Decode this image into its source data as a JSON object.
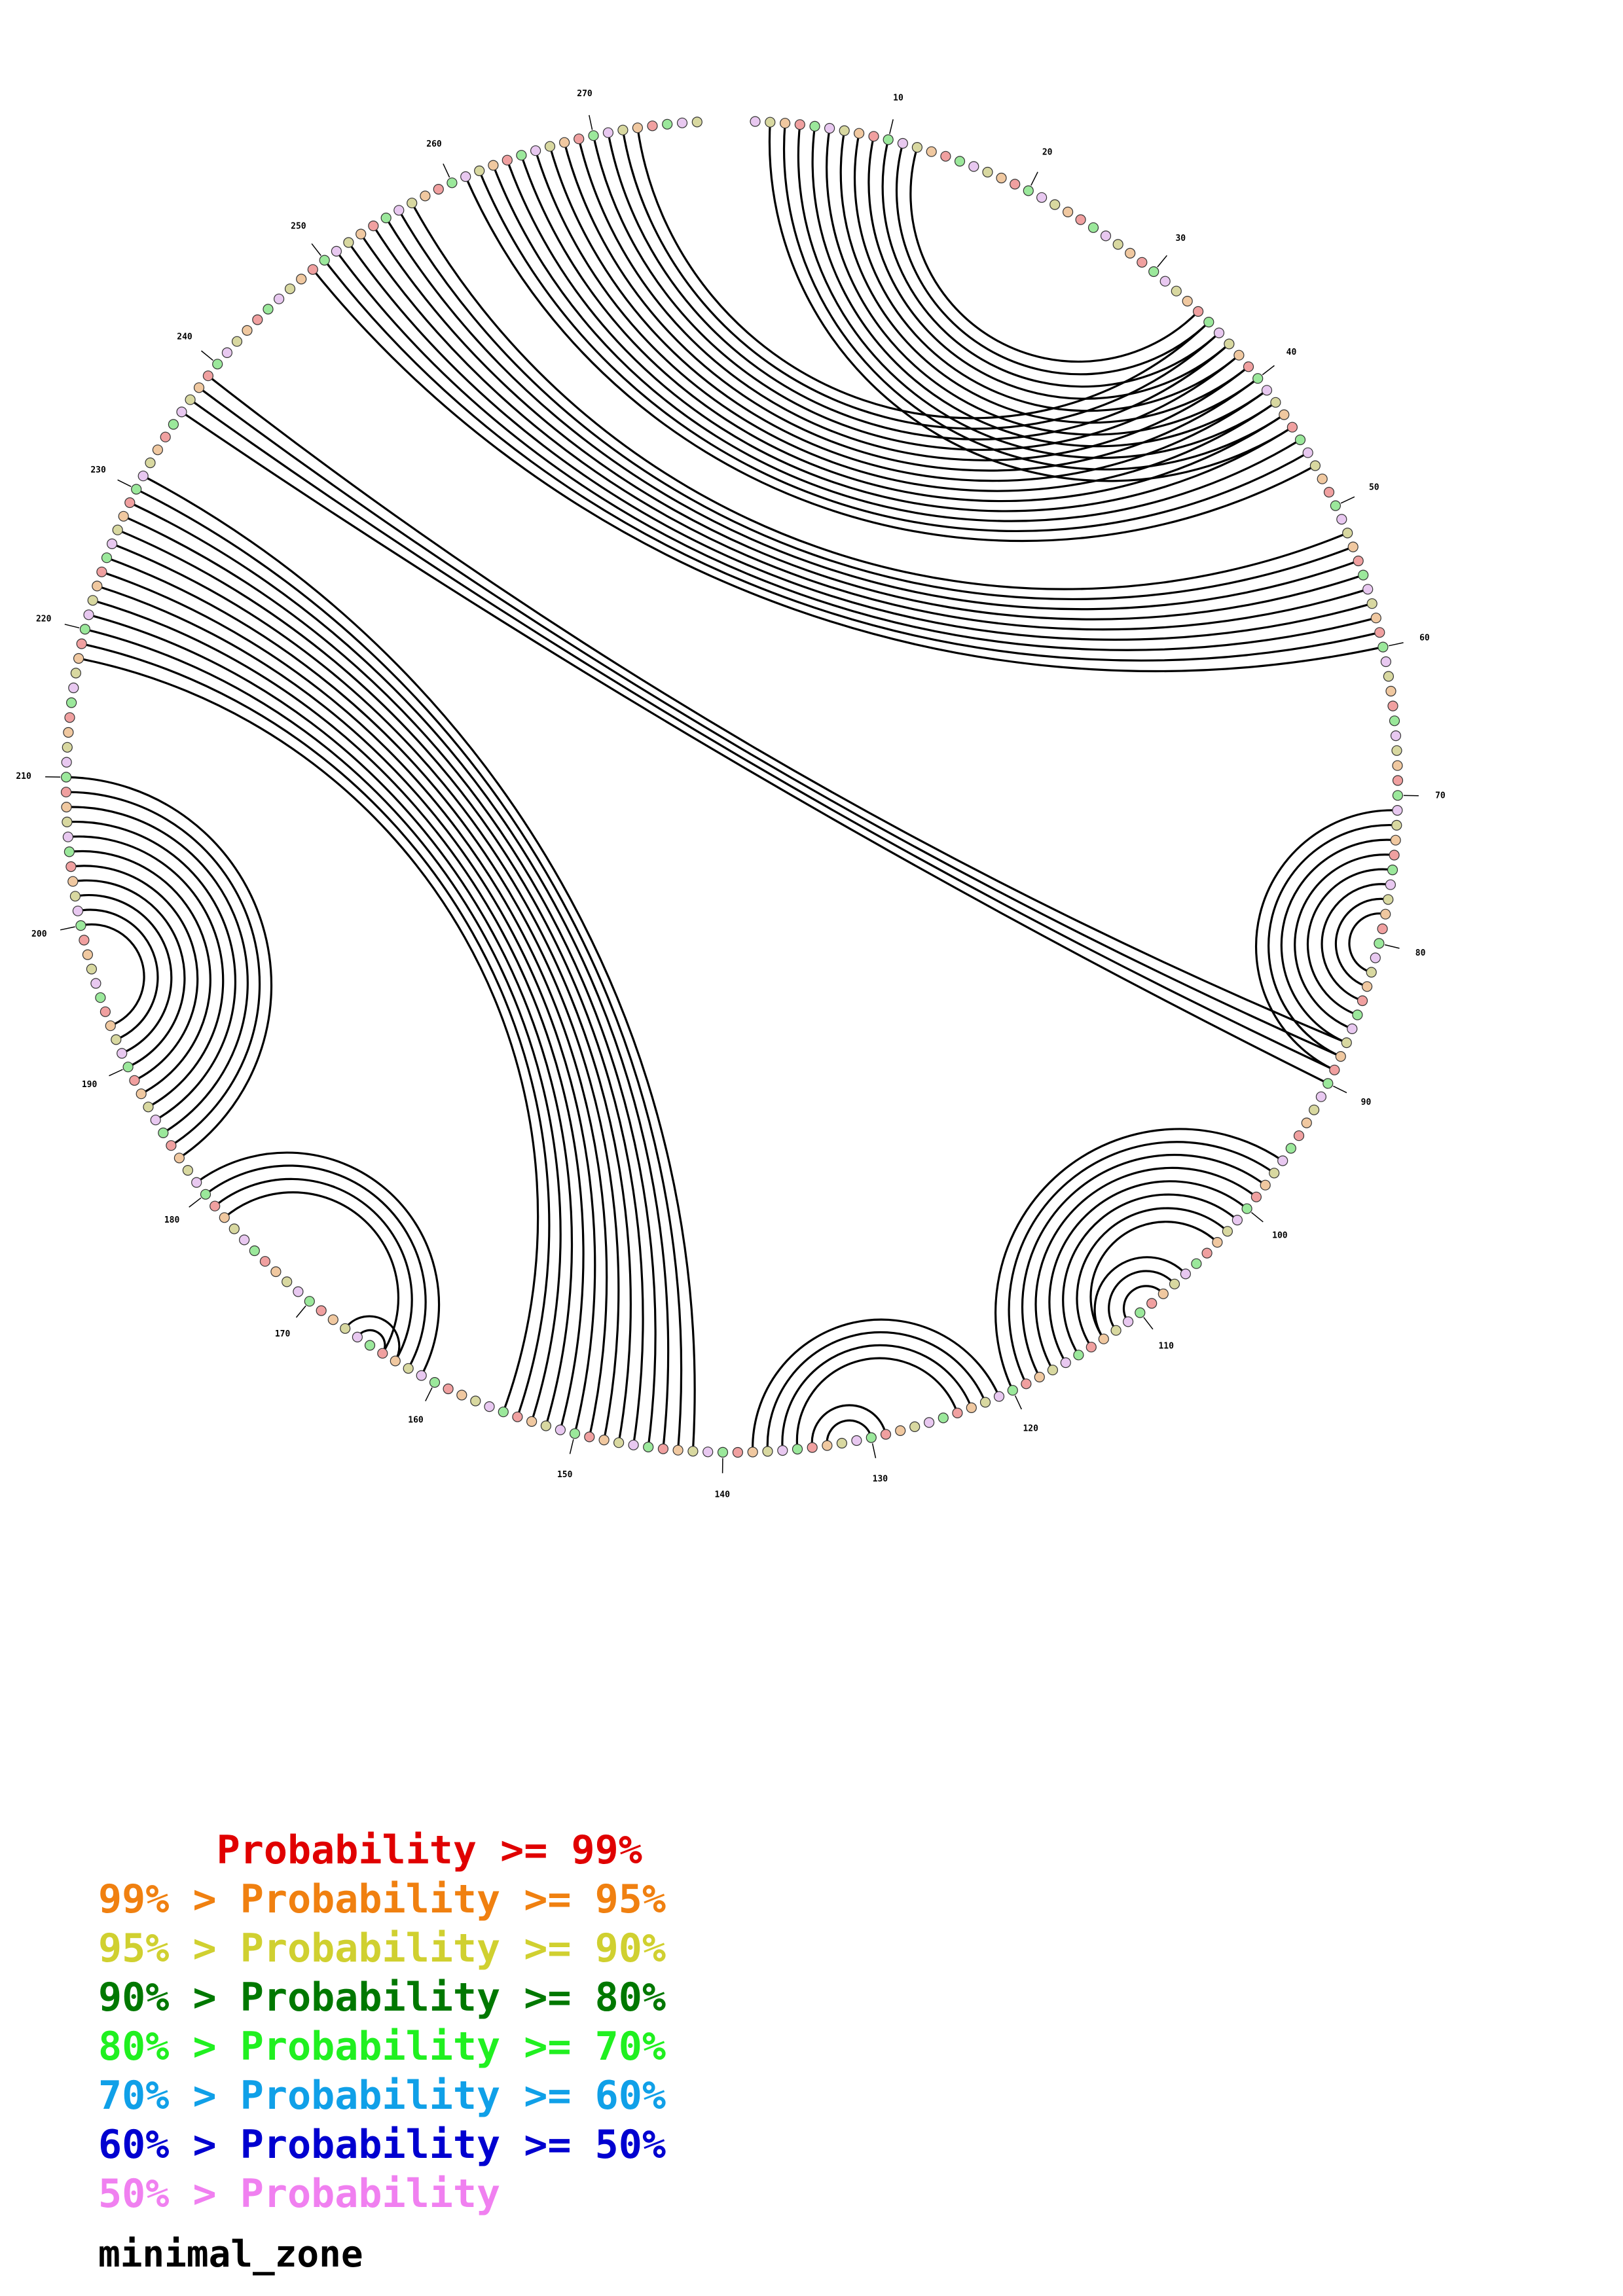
{
  "diagram": {
    "type": "circular-arc-base-pair-plot",
    "sequence_length": 277,
    "tick_labels": [
      {
        "pos": 10,
        "text": "10"
      },
      {
        "pos": 20,
        "text": "20"
      },
      {
        "pos": 30,
        "text": "30"
      },
      {
        "pos": 40,
        "text": "40"
      },
      {
        "pos": 50,
        "text": "50"
      },
      {
        "pos": 60,
        "text": "60"
      },
      {
        "pos": 70,
        "text": "70"
      },
      {
        "pos": 80,
        "text": "80"
      },
      {
        "pos": 90,
        "text": "90"
      },
      {
        "pos": 100,
        "text": "100"
      },
      {
        "pos": 110,
        "text": "110"
      },
      {
        "pos": 120,
        "text": "120"
      },
      {
        "pos": 130,
        "text": "130"
      },
      {
        "pos": 140,
        "text": "140"
      },
      {
        "pos": 150,
        "text": "150"
      },
      {
        "pos": 160,
        "text": "160"
      },
      {
        "pos": 170,
        "text": "170"
      },
      {
        "pos": 180,
        "text": "180"
      },
      {
        "pos": 190,
        "text": "190"
      },
      {
        "pos": 200,
        "text": "200"
      },
      {
        "pos": 210,
        "text": "210"
      },
      {
        "pos": 220,
        "text": "220"
      },
      {
        "pos": 230,
        "text": "230"
      },
      {
        "pos": 240,
        "text": "240"
      },
      {
        "pos": 250,
        "text": "250"
      },
      {
        "pos": 260,
        "text": "260"
      },
      {
        "pos": 270,
        "text": "270"
      }
    ],
    "helices": [
      {
        "i": 2,
        "j": 44,
        "len": 11
      },
      {
        "i": 236,
        "j": 90,
        "len": 4
      },
      {
        "i": 249,
        "j": 60,
        "len": 9
      },
      {
        "i": 261,
        "j": 47,
        "len": 13
      },
      {
        "i": 71,
        "j": 89,
        "len": 8
      },
      {
        "i": 96,
        "j": 120,
        "len": 8
      },
      {
        "i": 106,
        "j": 113,
        "len": 3
      },
      {
        "i": 121,
        "j": 138,
        "len": 4
      },
      {
        "i": 129,
        "j": 134,
        "len": 2
      },
      {
        "i": 142,
        "j": 231,
        "len": 14
      },
      {
        "i": 161,
        "j": 181,
        "len": 4
      },
      {
        "i": 163,
        "j": 167,
        "len": 2
      },
      {
        "i": 183,
        "j": 210,
        "len": 11
      }
    ]
  },
  "legend": [
    {
      "text": "     Probability >= 99%",
      "color": "#e00000"
    },
    {
      "text": "99% > Probability >= 95%",
      "color": "#f08010"
    },
    {
      "text": "95% > Probability >= 90%",
      "color": "#d0d030"
    },
    {
      "text": "90% > Probability >= 80%",
      "color": "#007800"
    },
    {
      "text": "80% > Probability >= 70%",
      "color": "#20f020"
    },
    {
      "text": "70% > Probability >= 60%",
      "color": "#10a0e8"
    },
    {
      "text": "60% > Probability >= 50%",
      "color": "#0000d0"
    },
    {
      "text": "50% > Probability",
      "color": "#f080f0"
    }
  ],
  "title": "minimal_zone",
  "nucleotide_fill_colors": [
    "#9be89b",
    "#c8c8f0",
    "#f0c8a0",
    "#e8c8f0",
    "#a8e0f0",
    "#f0a0a0",
    "#d8d8a0"
  ]
}
